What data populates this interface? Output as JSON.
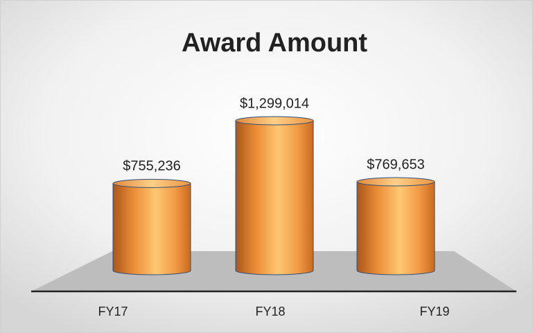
{
  "chart_data": {
    "type": "bar",
    "title": "Award Amount",
    "categories": [
      "FY17",
      "FY18",
      "FY19"
    ],
    "values": [
      755236,
      1299014,
      769653
    ],
    "value_labels": [
      "$755,236",
      "$1,299,014",
      "$769,653"
    ],
    "color": "#f4a04a"
  }
}
